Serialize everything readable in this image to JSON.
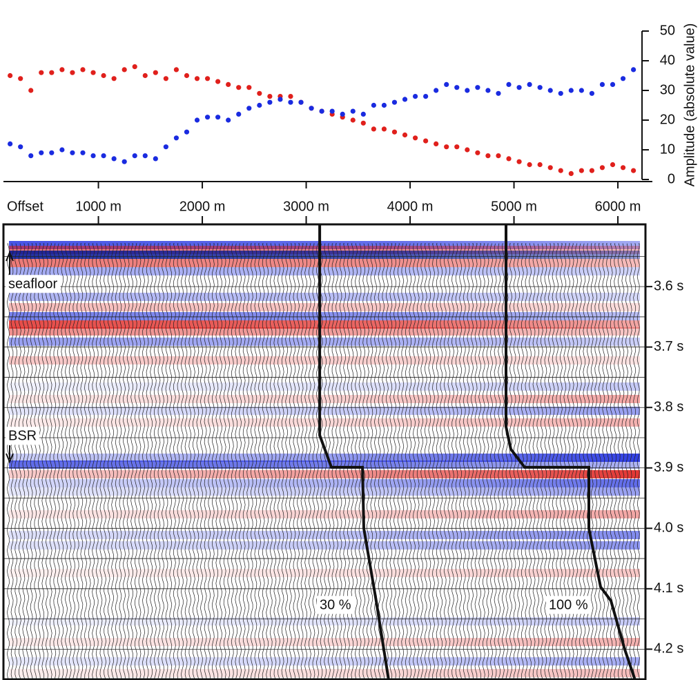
{
  "chart_data": [
    {
      "type": "scatter",
      "xlabel": "Offset",
      "ylabel": "Amplitude (absolute value)",
      "xlim": [
        86,
        6332
      ],
      "xticks": [
        {
          "value": 1000,
          "label": "1000 m"
        },
        {
          "value": 2000,
          "label": "2000 m"
        },
        {
          "value": 3000,
          "label": "3000 m"
        },
        {
          "value": 4000,
          "label": "4000 m"
        },
        {
          "value": 5000,
          "label": "5000 m"
        },
        {
          "value": 6000,
          "label": "6000 m"
        }
      ],
      "ylim": [
        0,
        50
      ],
      "yticks": [
        0,
        10,
        20,
        30,
        40,
        50
      ],
      "x": [
        150,
        250,
        350,
        450,
        550,
        650,
        750,
        850,
        950,
        1050,
        1150,
        1250,
        1350,
        1450,
        1550,
        1650,
        1750,
        1850,
        1950,
        2050,
        2150,
        2250,
        2350,
        2450,
        2550,
        2650,
        2750,
        2850,
        2950,
        3050,
        3150,
        3250,
        3350,
        3450,
        3550,
        3650,
        3750,
        3850,
        3950,
        4050,
        4150,
        4250,
        4350,
        4450,
        4550,
        4650,
        4750,
        4850,
        4950,
        5050,
        5150,
        5250,
        5350,
        5450,
        5550,
        5650,
        5750,
        5850,
        5950,
        6050,
        6150
      ],
      "series": [
        {
          "color": "#e0201c",
          "values": [
            35,
            34,
            30,
            36,
            36,
            37,
            36,
            37,
            36,
            35,
            34,
            37,
            38,
            35,
            36,
            34,
            37,
            35,
            34,
            34,
            33,
            32,
            31,
            31,
            29,
            28,
            28,
            28,
            26,
            24,
            23,
            22,
            21,
            20,
            19,
            17,
            17,
            16,
            15,
            14,
            13,
            12,
            11,
            11,
            10,
            9,
            8,
            8,
            7,
            6,
            5,
            5,
            4,
            3,
            2,
            3,
            3,
            4,
            5,
            4,
            3
          ]
        },
        {
          "color": "#1a2be0",
          "values": [
            12,
            11,
            8,
            9,
            9,
            10,
            9,
            9,
            8,
            8,
            7,
            6,
            8,
            8,
            7,
            11,
            14,
            16,
            20,
            21,
            21,
            20,
            22,
            24,
            25,
            26,
            27,
            26,
            26,
            24,
            23,
            23,
            22,
            23,
            22,
            25,
            25,
            26,
            27,
            28,
            28,
            30,
            32,
            31,
            30,
            31,
            30,
            29,
            32,
            31,
            32,
            31,
            30,
            29,
            30,
            30,
            29,
            32,
            32,
            34,
            37
          ]
        }
      ]
    },
    {
      "type": "line",
      "xlim": [
        86,
        6266
      ],
      "ylim": [
        3.497,
        4.251
      ],
      "yticks": [
        {
          "value": 3.6,
          "label": "3.6 s"
        },
        {
          "value": 3.7,
          "label": "3.7 s"
        },
        {
          "value": 3.8,
          "label": "3.8 s"
        },
        {
          "value": 3.9,
          "label": "3.9 s"
        },
        {
          "value": 4.0,
          "label": "4.0 s"
        },
        {
          "value": 4.1,
          "label": "4.1 s"
        },
        {
          "value": 4.2,
          "label": "4.2 s"
        }
      ],
      "annotations": [
        "seafloor",
        "BSR"
      ],
      "series": [
        {
          "name": "30 %",
          "color": "#111111",
          "x": [
            3130,
            3130,
            3243,
            3542,
            3555,
            3674,
            3794
          ],
          "values": [
            3.497,
            3.846,
            3.899,
            3.899,
            4.0,
            4.12,
            4.251
          ]
        },
        {
          "name": "100 %",
          "color": "#111111",
          "x": [
            4924,
            4924,
            4970,
            5103,
            5721,
            5721,
            5834,
            5934,
            6066,
            6166
          ],
          "values": [
            3.497,
            3.832,
            3.869,
            3.899,
            3.899,
            4.0,
            4.097,
            4.12,
            4.2,
            4.251
          ]
        }
      ]
    }
  ]
}
